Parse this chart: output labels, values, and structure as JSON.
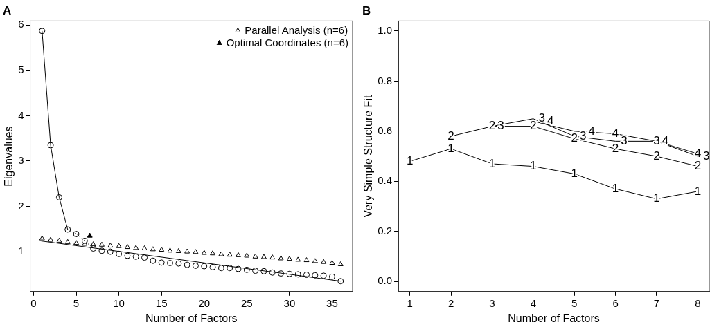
{
  "chart_data": [
    {
      "type": "scatter",
      "title": "A",
      "xlabel": "Number of Factors",
      "ylabel": "Eigenvalues",
      "xlim": [
        -0.4,
        37.4
      ],
      "ylim": [
        0.12,
        6.09
      ],
      "xticks": [
        0,
        5,
        10,
        15,
        20,
        25,
        30,
        35
      ],
      "yticks": [
        1,
        2,
        3,
        4,
        5,
        6
      ],
      "grid": false,
      "legend": "top right",
      "series": [
        {
          "type": "line",
          "color": "#000000",
          "marker": "none",
          "line_style": "solid",
          "x": [
            1,
            2,
            3,
            4
          ],
          "values": [
            5.87,
            3.35,
            2.2,
            1.49
          ]
        },
        {
          "type": "line",
          "color": "#000000",
          "marker": "none",
          "line_style": "dotted",
          "x": [
            4,
            5,
            6,
            7
          ],
          "values": [
            1.49,
            1.39,
            1.24,
            1.07
          ]
        },
        {
          "type": "line",
          "color": "#000000",
          "marker": "none",
          "line_style": "solid",
          "x": [
            0.75,
            36
          ],
          "values": [
            1.24,
            0.35
          ]
        },
        {
          "type": "scatter",
          "color": "#ffffff",
          "marker": "circle",
          "x": [
            1,
            2,
            3,
            4,
            5,
            6,
            7,
            8,
            9,
            10,
            11,
            12,
            13,
            14,
            15,
            16,
            17,
            18,
            19,
            20,
            21,
            22,
            23,
            24,
            25,
            26,
            27,
            28,
            29,
            30,
            31,
            32,
            33,
            34,
            35,
            36
          ],
          "values": [
            5.87,
            3.35,
            2.2,
            1.49,
            1.39,
            1.24,
            1.07,
            1.02,
            1.0,
            0.95,
            0.91,
            0.89,
            0.87,
            0.8,
            0.76,
            0.75,
            0.74,
            0.71,
            0.69,
            0.68,
            0.66,
            0.64,
            0.64,
            0.62,
            0.6,
            0.58,
            0.57,
            0.54,
            0.52,
            0.51,
            0.5,
            0.49,
            0.48,
            0.47,
            0.45,
            0.35
          ]
        },
        {
          "type": "scatter",
          "name": "Parallel Analysis (n=6)",
          "color": "#ffffff",
          "marker": "triangle",
          "x": [
            1,
            2,
            3,
            4,
            5,
            6,
            7,
            8,
            9,
            10,
            11,
            12,
            13,
            14,
            15,
            16,
            17,
            18,
            19,
            20,
            21,
            22,
            23,
            24,
            25,
            26,
            27,
            28,
            29,
            30,
            31,
            32,
            33,
            34,
            35,
            36
          ],
          "values": [
            1.29,
            1.26,
            1.24,
            1.21,
            1.19,
            1.17,
            1.16,
            1.15,
            1.13,
            1.12,
            1.1,
            1.08,
            1.07,
            1.05,
            1.04,
            1.02,
            1.01,
            1.0,
            0.99,
            0.97,
            0.96,
            0.94,
            0.93,
            0.92,
            0.91,
            0.89,
            0.88,
            0.87,
            0.85,
            0.84,
            0.82,
            0.81,
            0.79,
            0.77,
            0.75,
            0.72
          ]
        },
        {
          "type": "scatter",
          "name": "Optimal Coordinates (n=6)",
          "color": "#000000",
          "marker": "triangle",
          "x": [
            6.6
          ],
          "values": [
            1.35
          ]
        }
      ]
    },
    {
      "type": "line",
      "title": "B",
      "xlabel": "Number of Factors",
      "ylabel": "Very Simple Structure Fit",
      "xlim": [
        0.72,
        8.28
      ],
      "ylim": [
        -0.04,
        1.04
      ],
      "xticks": [
        1,
        2,
        3,
        4,
        5,
        6,
        7,
        8
      ],
      "yticks": [
        {
          "value": 0,
          "label": "0.0"
        },
        0.2,
        0.4,
        0.6,
        0.8,
        {
          "value": 1,
          "label": "1.0"
        }
      ],
      "grid": false,
      "marker": "none",
      "line_style": "solid",
      "x": [
        1,
        2,
        3,
        4,
        5,
        6,
        7,
        8
      ],
      "series": [
        {
          "name": "1",
          "color": "#000000",
          "values": [
            0.48,
            0.53,
            0.47,
            0.46,
            0.43,
            0.37,
            0.33,
            0.36
          ]
        },
        {
          "name": "2",
          "color": "#000000",
          "values": [
            null,
            0.58,
            0.62,
            0.62,
            0.57,
            0.53,
            0.5,
            0.46
          ]
        },
        {
          "name": "3",
          "color": "#000000",
          "values": [
            null,
            null,
            0.62,
            0.65,
            0.58,
            0.56,
            0.56,
            0.5
          ]
        },
        {
          "name": "4",
          "color": "#000000",
          "values": [
            null,
            null,
            null,
            0.64,
            0.6,
            0.59,
            0.56,
            0.51
          ]
        }
      ]
    }
  ]
}
